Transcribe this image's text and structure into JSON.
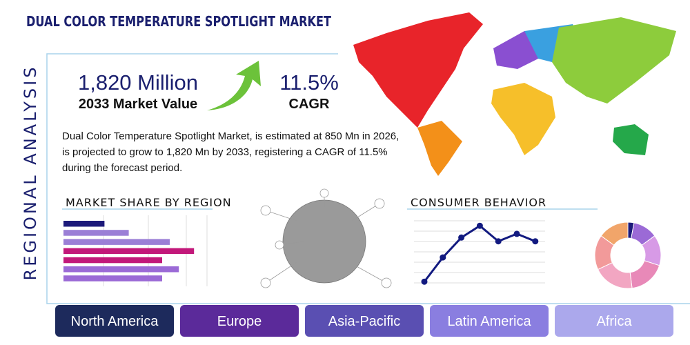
{
  "header": {
    "title": "DUAL COLOR TEMPERATURE SPOTLIGHT MARKET"
  },
  "side_label": "REGIONAL ANALYSIS",
  "stats": [
    {
      "value": "1,820 Million",
      "label": "2033 Market Value"
    },
    {
      "value": "11.5%",
      "label": "CAGR"
    }
  ],
  "description": "Dual Color Temperature Spotlight Market, is estimated at 850 Mn in 2026, is projected to grow to 1,820 Mn by 2033, registering a CAGR of 11.5% during the forecast period.",
  "bar_chart": {
    "title": "MARKET SHARE BY REGION",
    "values": [
      27,
      43,
      70,
      86,
      65,
      76,
      65
    ],
    "colors": [
      "#1c1a7a",
      "#9b7fd6",
      "#9b7fd6",
      "#c2187a",
      "#c2187a",
      "#9b6ad6",
      "#9b6ad6"
    ]
  },
  "line_chart": {
    "title": "CONSUMER BEHAVIOR",
    "values": [
      2,
      41,
      73,
      92,
      67,
      79,
      67
    ],
    "color": "#121a80"
  },
  "donut_chart": {
    "values": [
      3,
      12,
      15,
      18,
      20,
      17,
      15
    ],
    "colors": [
      "#1c1a7a",
      "#9b6ad6",
      "#d79ae6",
      "#e889b8",
      "#f2a6c2",
      "#f29a9a",
      "#f1a56a"
    ]
  },
  "regions": [
    "North America",
    "Europe",
    "Asia-Pacific",
    "Latin America",
    "Africa"
  ],
  "region_colors": [
    "#1d2a5c",
    "#5b2a9a",
    "#5a4fb2",
    "#8a7ee0",
    "#aba8ec"
  ]
}
